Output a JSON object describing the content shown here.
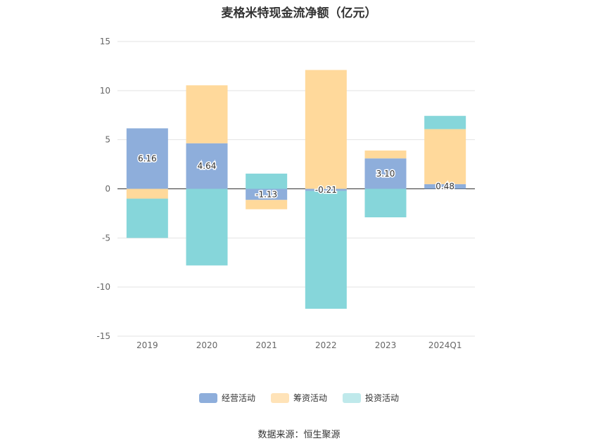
{
  "chart_data": {
    "type": "bar",
    "stacked": true,
    "title": "麦格米特现金流净额（亿元）",
    "categories": [
      "2019",
      "2020",
      "2021",
      "2022",
      "2023",
      "2024Q1"
    ],
    "series": [
      {
        "name": "经营活动",
        "color": "#8eaedb",
        "values": [
          6.16,
          4.64,
          -1.13,
          -0.21,
          3.1,
          0.48
        ]
      },
      {
        "name": "筹资活动",
        "color": "#ffd99b",
        "values": [
          -1.0,
          5.9,
          -0.95,
          12.1,
          0.8,
          5.6
        ]
      },
      {
        "name": "投资活动",
        "color": "#86d6da",
        "values": [
          -4.0,
          -7.8,
          1.55,
          -12.0,
          -2.9,
          1.35
        ]
      }
    ],
    "data_labels": [
      "6.16",
      "4.64",
      "-1.13",
      "-0.21",
      "3.10",
      "0.48"
    ],
    "yticks": [
      15,
      10,
      5,
      0,
      -5,
      -10,
      -15
    ],
    "ylim": [
      -15,
      15
    ],
    "grid": true,
    "legend_position": "bottom",
    "source": "数据来源：恒生聚源"
  },
  "legend": {
    "items": [
      {
        "label": "经营活动",
        "color": "#8eaedb"
      },
      {
        "label": "筹资活动",
        "color": "#ffe3b8"
      },
      {
        "label": "投资活动",
        "color": "#bfe9eb"
      }
    ]
  }
}
